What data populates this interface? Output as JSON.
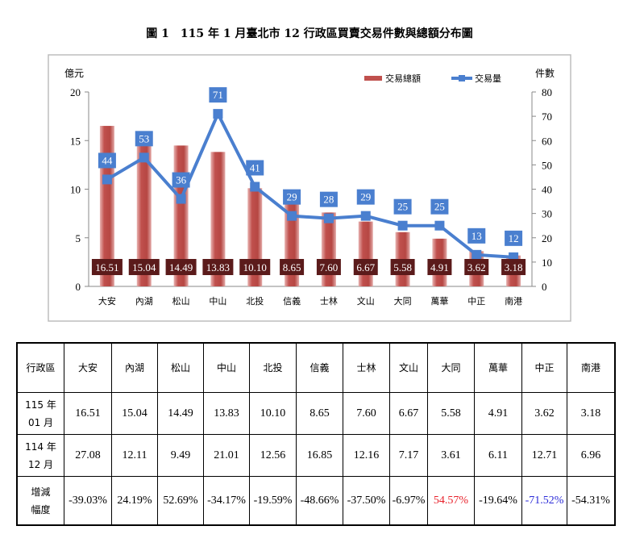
{
  "title": "圖 1　115 年 1 月臺北市 12 行政區買賣交易件數與總額分布圖",
  "chart_data": {
    "type": "bar+line",
    "title": "圖 1　115 年 1 月臺北市 12 行政區買賣交易件數與總額分布圖",
    "categories": [
      "大安",
      "內湖",
      "松山",
      "中山",
      "北投",
      "信義",
      "士林",
      "文山",
      "大同",
      "萬華",
      "中正",
      "南港"
    ],
    "ylabel_left": "億元",
    "ylabel_right": "件數",
    "ylim_left": [
      0,
      20
    ],
    "yticks_left": [
      0,
      5,
      10,
      15,
      20
    ],
    "ylim_right": [
      0,
      80
    ],
    "yticks_right": [
      0,
      10,
      20,
      30,
      40,
      50,
      60,
      70,
      80
    ],
    "legend_position": "top-right",
    "grid": false,
    "series": [
      {
        "name": "交易總額",
        "type": "bar",
        "axis": "left",
        "color": "#c0504d",
        "values": [
          16.51,
          15.04,
          14.49,
          13.83,
          10.1,
          8.65,
          7.6,
          6.67,
          5.58,
          4.91,
          3.62,
          3.18
        ],
        "labels": [
          "16.51",
          "15.04",
          "14.49",
          "13.83",
          "10.10",
          "8.65",
          "7.60",
          "6.67",
          "5.58",
          "4.91",
          "3.62",
          "3.18"
        ]
      },
      {
        "name": "交易量",
        "type": "line",
        "axis": "right",
        "color": "#4a7fcf",
        "values": [
          44,
          53,
          36,
          71,
          41,
          29,
          28,
          29,
          25,
          25,
          13,
          12
        ]
      }
    ]
  },
  "table": {
    "header": [
      "行政區",
      "大安",
      "內湖",
      "松山",
      "中山",
      "北投",
      "信義",
      "士林",
      "文山",
      "大同",
      "萬華",
      "中正",
      "南港"
    ],
    "rows": [
      {
        "label": [
          "115 年",
          "01 月"
        ],
        "values": [
          "16.51",
          "15.04",
          "14.49",
          "13.83",
          "10.10",
          "8.65",
          "7.60",
          "6.67",
          "5.58",
          "4.91",
          "3.62",
          "3.18"
        ]
      },
      {
        "label": [
          "114 年",
          "12 月"
        ],
        "values": [
          "27.08",
          "12.11",
          "9.49",
          "21.01",
          "12.56",
          "16.85",
          "12.16",
          "7.17",
          "3.61",
          "6.11",
          "12.71",
          "6.96"
        ]
      },
      {
        "label": [
          "增減",
          "幅度"
        ],
        "values": [
          "-39.03%",
          "24.19%",
          "52.69%",
          "-34.17%",
          "-19.59%",
          "-48.66%",
          "-37.50%",
          "-6.97%",
          "54.57%",
          "-19.64%",
          "-71.52%",
          "-54.31%"
        ]
      }
    ],
    "highlight": {
      "max_color": "#e8202a",
      "min_color": "#2b2bd8"
    }
  }
}
